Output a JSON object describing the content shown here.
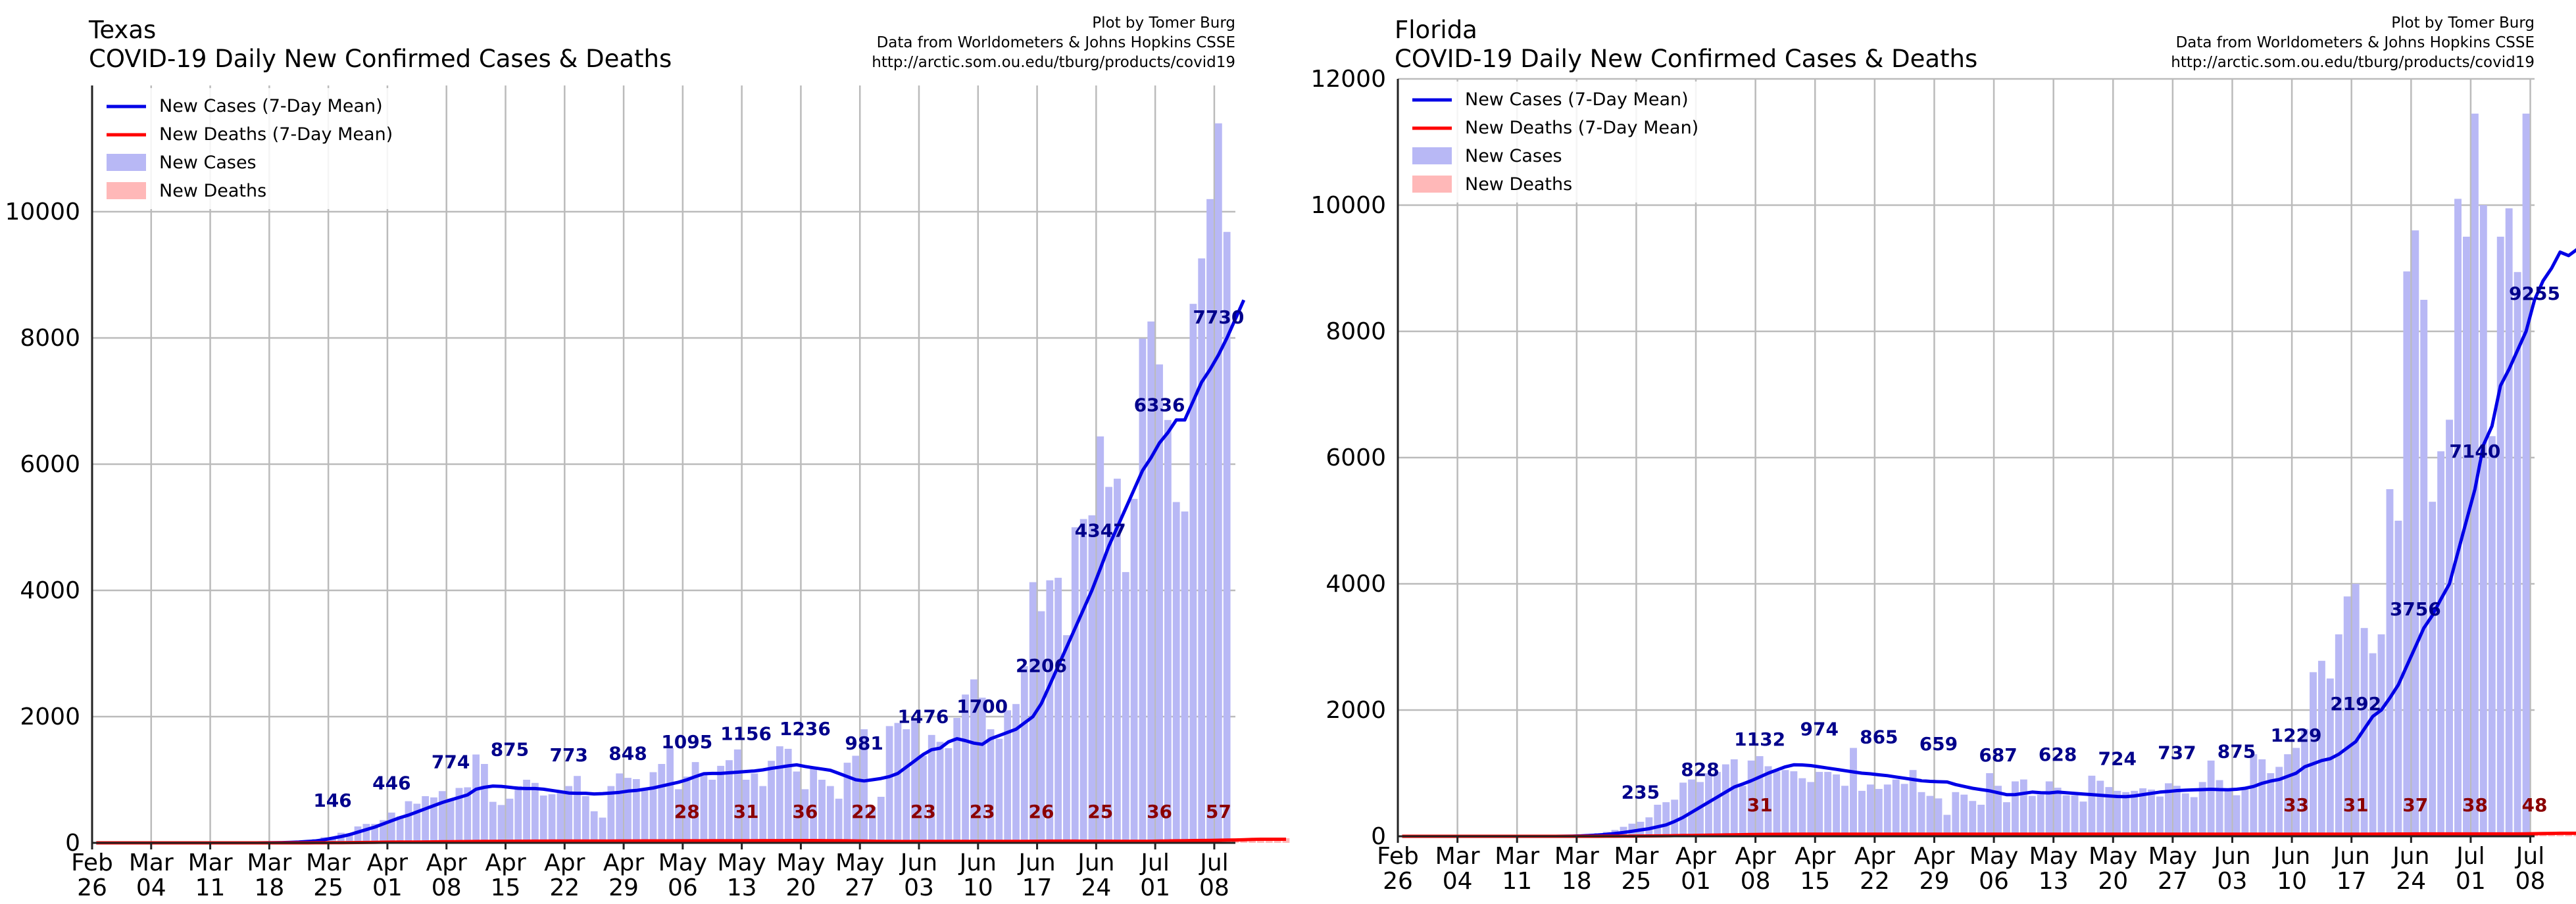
{
  "chart_data": [
    {
      "type": "bar",
      "region": "Texas",
      "title": "COVID-19 Daily New Confirmed Cases & Deaths",
      "credit": [
        "Plot by Tomer Burg",
        "Data from Worldometers & Johns Hopkins CSSE",
        "http://arctic.som.ou.edu/tburg/products/covid19"
      ],
      "start_date": "2020-02-26",
      "ylim": [
        0,
        12000
      ],
      "yticks": [
        "0",
        "2000",
        "4000",
        "6000",
        "8000",
        "10000"
      ],
      "xticks": [
        {
          "month": "Feb",
          "day": "26"
        },
        {
          "month": "Mar",
          "day": "04"
        },
        {
          "month": "Mar",
          "day": "11"
        },
        {
          "month": "Mar",
          "day": "18"
        },
        {
          "month": "Mar",
          "day": "25"
        },
        {
          "month": "Apr",
          "day": "01"
        },
        {
          "month": "Apr",
          "day": "08"
        },
        {
          "month": "Apr",
          "day": "15"
        },
        {
          "month": "Apr",
          "day": "22"
        },
        {
          "month": "Apr",
          "day": "29"
        },
        {
          "month": "May",
          "day": "06"
        },
        {
          "month": "May",
          "day": "13"
        },
        {
          "month": "May",
          "day": "20"
        },
        {
          "month": "May",
          "day": "27"
        },
        {
          "month": "Jun",
          "day": "03"
        },
        {
          "month": "Jun",
          "day": "10"
        },
        {
          "month": "Jun",
          "day": "17"
        },
        {
          "month": "Jun",
          "day": "24"
        },
        {
          "month": "Jul",
          "day": "01"
        },
        {
          "month": "Jul",
          "day": "08"
        }
      ],
      "legend": [
        "New Cases (7-Day Mean)",
        "New Deaths (7-Day Mean)",
        "New Cases",
        "New Deaths"
      ],
      "colors": {
        "mean_cases": "#0000e6",
        "mean_deaths": "#ff0000",
        "cases_bar": "#b8b8f5",
        "deaths_bar": "#ffb8b8",
        "case_label": "#00008b",
        "death_label": "#8b0000"
      },
      "new_cases": [
        0,
        0,
        0,
        0,
        0,
        0,
        0,
        0,
        0,
        0,
        0,
        0,
        0,
        0,
        0,
        0,
        0,
        0,
        0,
        0,
        3,
        6,
        12,
        20,
        30,
        40,
        60,
        90,
        90,
        160,
        130,
        260,
        300,
        300,
        360,
        480,
        420,
        660,
        620,
        740,
        720,
        820,
        700,
        870,
        880,
        1400,
        1250,
        650,
        600,
        700,
        900,
        1000,
        950,
        750,
        770,
        800,
        900,
        1060,
        740,
        500,
        400,
        900,
        1100,
        1030,
        1010,
        850,
        1120,
        1250,
        1500,
        850,
        1050,
        1280,
        1100,
        1000,
        1220,
        1310,
        1480,
        1000,
        1100,
        900,
        1300,
        1530,
        1490,
        1130,
        850,
        1200,
        1000,
        900,
        700,
        1270,
        1380,
        1800,
        570,
        730,
        1850,
        1900,
        1800,
        1950,
        1380,
        1710,
        1600,
        1500,
        1980,
        2350,
        2590,
        2300,
        1800,
        1650,
        2100,
        2200,
        2800,
        4130,
        3670,
        4160,
        4200,
        3290,
        5000,
        5130,
        5190,
        6440,
        5640,
        5770,
        4290,
        5450,
        7990,
        8260,
        7580,
        6700,
        5400,
        5250,
        8540,
        9260,
        10200,
        11400,
        9680
      ],
      "mean_cases": [
        0,
        0,
        0,
        0,
        0,
        0,
        0,
        0,
        0,
        0,
        0,
        0,
        0,
        0,
        0,
        0,
        0,
        0,
        0,
        0,
        1,
        2,
        4,
        8,
        14,
        22,
        30,
        50,
        75,
        100,
        130,
        170,
        210,
        250,
        300,
        350,
        400,
        440,
        490,
        540,
        590,
        640,
        680,
        720,
        760,
        850,
        880,
        900,
        895,
        880,
        865,
        860,
        860,
        850,
        830,
        810,
        790,
        785,
        785,
        775,
        780,
        790,
        800,
        820,
        830,
        850,
        870,
        900,
        930,
        960,
        1000,
        1050,
        1095,
        1100,
        1100,
        1110,
        1120,
        1130,
        1140,
        1156,
        1180,
        1200,
        1220,
        1236,
        1210,
        1190,
        1170,
        1150,
        1100,
        1050,
        1000,
        981,
        1000,
        1020,
        1050,
        1100,
        1200,
        1300,
        1400,
        1476,
        1500,
        1600,
        1650,
        1620,
        1580,
        1560,
        1650,
        1700,
        1750,
        1800,
        1900,
        2000,
        2206,
        2500,
        2800,
        3100,
        3400,
        3700,
        4000,
        4347,
        4700,
        5000,
        5300,
        5600,
        5900,
        6100,
        6336,
        6500,
        6700,
        6700,
        7000,
        7300,
        7500,
        7730,
        8000,
        8300,
        8600
      ],
      "mean_deaths": [
        0,
        0,
        0,
        0,
        0,
        0,
        0,
        0,
        0,
        0,
        0,
        0,
        0,
        0,
        0,
        0,
        0,
        0,
        0,
        0,
        0,
        0,
        0,
        0,
        0,
        0,
        1,
        1,
        2,
        3,
        4,
        5,
        6,
        8,
        10,
        11,
        12,
        13,
        14,
        15,
        16,
        18,
        19,
        20,
        21,
        22,
        23,
        24,
        25,
        25,
        26,
        26,
        27,
        27,
        28,
        28,
        28,
        28,
        28,
        29,
        29,
        29,
        30,
        30,
        30,
        31,
        31,
        31,
        31,
        32,
        32,
        32,
        32,
        33,
        33,
        33,
        34,
        34,
        34,
        35,
        35,
        35,
        36,
        36,
        36,
        36,
        35,
        34,
        33,
        32,
        30,
        28,
        26,
        24,
        23,
        22,
        22,
        22,
        23,
        23,
        23,
        23,
        23,
        23,
        23,
        23,
        23,
        23,
        23,
        23,
        24,
        25,
        26,
        27,
        27,
        27,
        27,
        26,
        26,
        26,
        26,
        25,
        25,
        25,
        25,
        26,
        28,
        30,
        32,
        34,
        36,
        38,
        40,
        42,
        44,
        46,
        50,
        54,
        57,
        57,
        57,
        57
      ],
      "case_labels": [
        {
          "date": "2020-03-25",
          "text": "146"
        },
        {
          "date": "2020-04-01",
          "text": "446"
        },
        {
          "date": "2020-04-08",
          "text": "774"
        },
        {
          "date": "2020-04-15",
          "text": "875"
        },
        {
          "date": "2020-04-22",
          "text": "773"
        },
        {
          "date": "2020-04-29",
          "text": "848"
        },
        {
          "date": "2020-05-06",
          "text": "1095"
        },
        {
          "date": "2020-05-13",
          "text": "1156"
        },
        {
          "date": "2020-05-20",
          "text": "1236"
        },
        {
          "date": "2020-05-27",
          "text": "981"
        },
        {
          "date": "2020-06-03",
          "text": "1476"
        },
        {
          "date": "2020-06-10",
          "text": "1700"
        },
        {
          "date": "2020-06-17",
          "text": "2206"
        },
        {
          "date": "2020-06-24",
          "text": "4347"
        },
        {
          "date": "2020-07-01",
          "text": "6336"
        },
        {
          "date": "2020-07-08",
          "text": "7730"
        }
      ],
      "death_labels": [
        {
          "date": "2020-05-06",
          "text": "28"
        },
        {
          "date": "2020-05-13",
          "text": "31"
        },
        {
          "date": "2020-05-20",
          "text": "36"
        },
        {
          "date": "2020-05-27",
          "text": "22"
        },
        {
          "date": "2020-06-03",
          "text": "23"
        },
        {
          "date": "2020-06-10",
          "text": "23"
        },
        {
          "date": "2020-06-17",
          "text": "26"
        },
        {
          "date": "2020-06-24",
          "text": "25"
        },
        {
          "date": "2020-07-01",
          "text": "36"
        },
        {
          "date": "2020-07-08",
          "text": "57"
        }
      ]
    },
    {
      "type": "bar",
      "region": "Florida",
      "title": "COVID-19 Daily New Confirmed Cases & Deaths",
      "credit": [
        "Plot by Tomer Burg",
        "Data from Worldometers & Johns Hopkins CSSE",
        "http://arctic.som.ou.edu/tburg/products/covid19"
      ],
      "start_date": "2020-02-26",
      "ylim": [
        0,
        12000
      ],
      "yticks": [
        "0",
        "2000",
        "4000",
        "6000",
        "8000",
        "10000",
        "12000"
      ],
      "xticks": [
        {
          "month": "Feb",
          "day": "26"
        },
        {
          "month": "Mar",
          "day": "04"
        },
        {
          "month": "Mar",
          "day": "11"
        },
        {
          "month": "Mar",
          "day": "18"
        },
        {
          "month": "Mar",
          "day": "25"
        },
        {
          "month": "Apr",
          "day": "01"
        },
        {
          "month": "Apr",
          "day": "08"
        },
        {
          "month": "Apr",
          "day": "15"
        },
        {
          "month": "Apr",
          "day": "22"
        },
        {
          "month": "Apr",
          "day": "29"
        },
        {
          "month": "May",
          "day": "06"
        },
        {
          "month": "May",
          "day": "13"
        },
        {
          "month": "May",
          "day": "20"
        },
        {
          "month": "May",
          "day": "27"
        },
        {
          "month": "Jun",
          "day": "03"
        },
        {
          "month": "Jun",
          "day": "10"
        },
        {
          "month": "Jun",
          "day": "17"
        },
        {
          "month": "Jun",
          "day": "24"
        },
        {
          "month": "Jul",
          "day": "01"
        },
        {
          "month": "Jul",
          "day": "08"
        }
      ],
      "legend": [
        "New Cases (7-Day Mean)",
        "New Deaths (7-Day Mean)",
        "New Cases",
        "New Deaths"
      ],
      "colors": {
        "mean_cases": "#0000e6",
        "mean_deaths": "#ff0000",
        "cases_bar": "#b8b8f5",
        "deaths_bar": "#ffb8b8",
        "case_label": "#00008b",
        "death_label": "#8b0000"
      },
      "new_cases": [
        0,
        0,
        0,
        0,
        0,
        0,
        0,
        0,
        0,
        0,
        0,
        0,
        0,
        0,
        0,
        0,
        0,
        0,
        0,
        3,
        8,
        15,
        30,
        50,
        70,
        100,
        150,
        200,
        230,
        300,
        500,
        540,
        580,
        850,
        900,
        860,
        1000,
        1020,
        1140,
        1220,
        800,
        1200,
        1270,
        1110,
        1030,
        1050,
        1030,
        920,
        860,
        1020,
        1020,
        980,
        800,
        1400,
        720,
        820,
        750,
        820,
        900,
        830,
        1050,
        700,
        640,
        600,
        340,
        700,
        660,
        560,
        500,
        1000,
        800,
        540,
        870,
        900,
        640,
        660,
        870,
        770,
        650,
        650,
        550,
        960,
        880,
        780,
        720,
        700,
        720,
        760,
        740,
        630,
        840,
        800,
        680,
        620,
        860,
        1200,
        890,
        720,
        650,
        740,
        1300,
        1220,
        1000,
        1100,
        1300,
        1400,
        1700,
        2600,
        2780,
        2500,
        3200,
        3800,
        4000,
        3300,
        2900,
        3200,
        5500,
        5000,
        8950,
        9600,
        8500,
        5300,
        6100,
        6600,
        10100,
        9500,
        11450,
        10000,
        6340,
        9500,
        9950,
        8940,
        11450
      ],
      "mean_cases": [
        0,
        0,
        0,
        0,
        0,
        0,
        0,
        0,
        0,
        0,
        0,
        0,
        0,
        0,
        0,
        0,
        0,
        0,
        0,
        1,
        3,
        6,
        12,
        20,
        30,
        45,
        60,
        80,
        100,
        120,
        150,
        180,
        235,
        300,
        380,
        460,
        540,
        620,
        700,
        780,
        828,
        880,
        940,
        1000,
        1050,
        1100,
        1132,
        1130,
        1120,
        1100,
        1080,
        1060,
        1040,
        1020,
        1000,
        990,
        974,
        960,
        940,
        920,
        900,
        880,
        870,
        865,
        860,
        820,
        790,
        760,
        740,
        720,
        690,
        659,
        660,
        680,
        700,
        690,
        687,
        700,
        690,
        680,
        670,
        660,
        650,
        640,
        630,
        628,
        640,
        660,
        680,
        700,
        710,
        724,
        730,
        735,
        740,
        745,
        740,
        737,
        745,
        760,
        790,
        840,
        875,
        900,
        950,
        1000,
        1100,
        1150,
        1200,
        1229,
        1300,
        1400,
        1500,
        1700,
        1900,
        2000,
        2192,
        2400,
        2700,
        3000,
        3300,
        3500,
        3756,
        4000,
        4500,
        5000,
        5500,
        6200,
        6500,
        7140,
        7400,
        7700,
        8000,
        8500,
        8800,
        9000,
        9255,
        9200,
        9300
      ],
      "mean_deaths": [
        0,
        0,
        0,
        0,
        0,
        0,
        0,
        0,
        0,
        0,
        0,
        0,
        0,
        0,
        0,
        0,
        0,
        0,
        0,
        0,
        0,
        0,
        0,
        0,
        1,
        1,
        2,
        3,
        4,
        5,
        6,
        8,
        10,
        12,
        14,
        16,
        18,
        20,
        22,
        24,
        26,
        28,
        30,
        31,
        31,
        32,
        32,
        33,
        33,
        33,
        33,
        34,
        34,
        34,
        34,
        34,
        34,
        34,
        33,
        33,
        33,
        33,
        33,
        33,
        33,
        33,
        33,
        33,
        33,
        33,
        33,
        33,
        33,
        33,
        33,
        33,
        33,
        33,
        33,
        33,
        33,
        33,
        33,
        33,
        33,
        33,
        33,
        33,
        33,
        33,
        33,
        33,
        33,
        33,
        33,
        33,
        33,
        33,
        33,
        33,
        33,
        33,
        33,
        33,
        33,
        33,
        33,
        33,
        33,
        33,
        33,
        33,
        33,
        34,
        34,
        35,
        35,
        36,
        36,
        37,
        37,
        37,
        37,
        37,
        37,
        37,
        37,
        38,
        38,
        38,
        38,
        38,
        40,
        42,
        44,
        46,
        48,
        48,
        48,
        48,
        48
      ],
      "case_labels": [
        {
          "date": "2020-03-25",
          "text": "235"
        },
        {
          "date": "2020-04-01",
          "text": "828"
        },
        {
          "date": "2020-04-08",
          "text": "1132"
        },
        {
          "date": "2020-04-15",
          "text": "974"
        },
        {
          "date": "2020-04-22",
          "text": "865"
        },
        {
          "date": "2020-04-29",
          "text": "659"
        },
        {
          "date": "2020-05-06",
          "text": "687"
        },
        {
          "date": "2020-05-13",
          "text": "628"
        },
        {
          "date": "2020-05-20",
          "text": "724"
        },
        {
          "date": "2020-05-27",
          "text": "737"
        },
        {
          "date": "2020-06-03",
          "text": "875"
        },
        {
          "date": "2020-06-10",
          "text": "1229"
        },
        {
          "date": "2020-06-17",
          "text": "2192"
        },
        {
          "date": "2020-06-24",
          "text": "3756"
        },
        {
          "date": "2020-07-01",
          "text": "7140"
        },
        {
          "date": "2020-07-08",
          "text": "9255"
        }
      ],
      "death_labels": [
        {
          "date": "2020-04-08",
          "text": "31"
        },
        {
          "date": "2020-06-10",
          "text": "33"
        },
        {
          "date": "2020-06-17",
          "text": "31"
        },
        {
          "date": "2020-06-24",
          "text": "37"
        },
        {
          "date": "2020-07-01",
          "text": "38"
        },
        {
          "date": "2020-07-08",
          "text": "48"
        }
      ]
    }
  ]
}
